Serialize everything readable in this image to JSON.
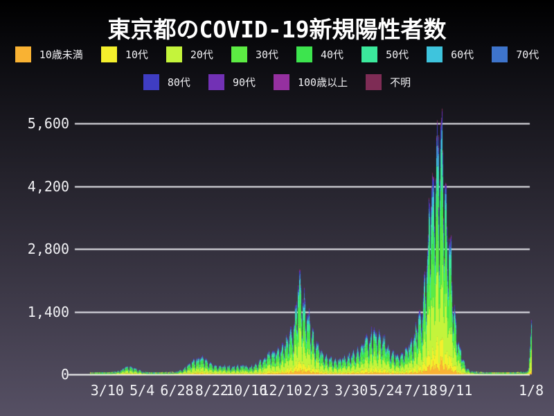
{
  "chart_data": {
    "type": "area",
    "subtype": "stacked-daily-bars",
    "title": "東京都のCOVID-19新規陽性者数",
    "legend_position": "top",
    "grid": "on",
    "colors": {
      "background_top": "#000000",
      "background_bottom": "#565064",
      "grid_line": "#eeeef4",
      "axis_line": "#ffffff",
      "text": "#f2f2f5"
    },
    "ylim": [
      0,
      5950
    ],
    "y_ticks": [
      {
        "value": 0,
        "label": "0"
      },
      {
        "value": 1400,
        "label": "1,400"
      },
      {
        "value": 2800,
        "label": "2,800"
      },
      {
        "value": 4200,
        "label": "4,200"
      },
      {
        "value": 5600,
        "label": "5,600"
      }
    ],
    "x_ticks": [
      {
        "day": 49,
        "label": "3/10"
      },
      {
        "day": 104,
        "label": "5/4"
      },
      {
        "day": 159,
        "label": "6/28"
      },
      {
        "day": 214,
        "label": "8/22"
      },
      {
        "day": 269,
        "label": "10/16"
      },
      {
        "day": 324,
        "label": "12/10"
      },
      {
        "day": 379,
        "label": "2/3"
      },
      {
        "day": 434,
        "label": "3/30"
      },
      {
        "day": 489,
        "label": "5/24"
      },
      {
        "day": 544,
        "label": "7/18"
      },
      {
        "day": 599,
        "label": "9/11"
      },
      {
        "day": 718,
        "label": "1/8"
      }
    ],
    "total_days": 719,
    "series": [
      {
        "label": "10歳未満",
        "color": "#f9b233",
        "share": 0.045
      },
      {
        "label": "10代",
        "color": "#f4ef2c",
        "share": 0.085
      },
      {
        "label": "20代",
        "color": "#c4f43b",
        "share": 0.27
      },
      {
        "label": "30代",
        "color": "#5ceb43",
        "share": 0.19
      },
      {
        "label": "40代",
        "color": "#3de44e",
        "share": 0.155
      },
      {
        "label": "50代",
        "color": "#3be99c",
        "share": 0.11
      },
      {
        "label": "60代",
        "color": "#3ec4dd",
        "share": 0.055
      },
      {
        "label": "70代",
        "color": "#3e74cb",
        "share": 0.04
      },
      {
        "label": "80代",
        "color": "#3f3dc3",
        "share": 0.028
      },
      {
        "label": "90代",
        "color": "#7231b5",
        "share": 0.013
      },
      {
        "label": "100歳以上",
        "color": "#9530a0",
        "share": 0.002
      },
      {
        "label": "不明",
        "color": "#7e2c55",
        "share": 0.007
      }
    ],
    "legend_rows": [
      8,
      4
    ],
    "weekly_avg_daily_cases": {
      "day_step": 7,
      "values": [
        0,
        1,
        1,
        2,
        3,
        6,
        10,
        16,
        25,
        50,
        90,
        140,
        170,
        130,
        95,
        55,
        25,
        13,
        12,
        18,
        22,
        28,
        45,
        60,
        110,
        190,
        250,
        310,
        340,
        310,
        260,
        190,
        155,
        175,
        170,
        155,
        175,
        180,
        175,
        165,
        175,
        240,
        310,
        390,
        440,
        470,
        540,
        640,
        760,
        950,
        1850,
        1650,
        1250,
        900,
        620,
        470,
        390,
        330,
        290,
        300,
        310,
        350,
        400,
        440,
        540,
        650,
        740,
        870,
        820,
        730,
        590,
        450,
        400,
        400,
        480,
        570,
        760,
        1050,
        1450,
        2600,
        3700,
        4400,
        4600,
        4100,
        2900,
        1500,
        700,
        300,
        130,
        70,
        40,
        28,
        22,
        18,
        16,
        15,
        14,
        16,
        18,
        20,
        28,
        45,
        60
      ]
    },
    "weekday_factors": [
      1.05,
      1.12,
      1.18,
      1.22,
      1.1,
      0.78,
      0.58
    ],
    "daily_overrides": {
      "711": 78,
      "712": 84,
      "713": 77,
      "714": 151,
      "715": 390,
      "716": 641,
      "717": 922,
      "718": 1224
    },
    "peak_value_reading": 5900,
    "end_spike_reading": 1224
  }
}
